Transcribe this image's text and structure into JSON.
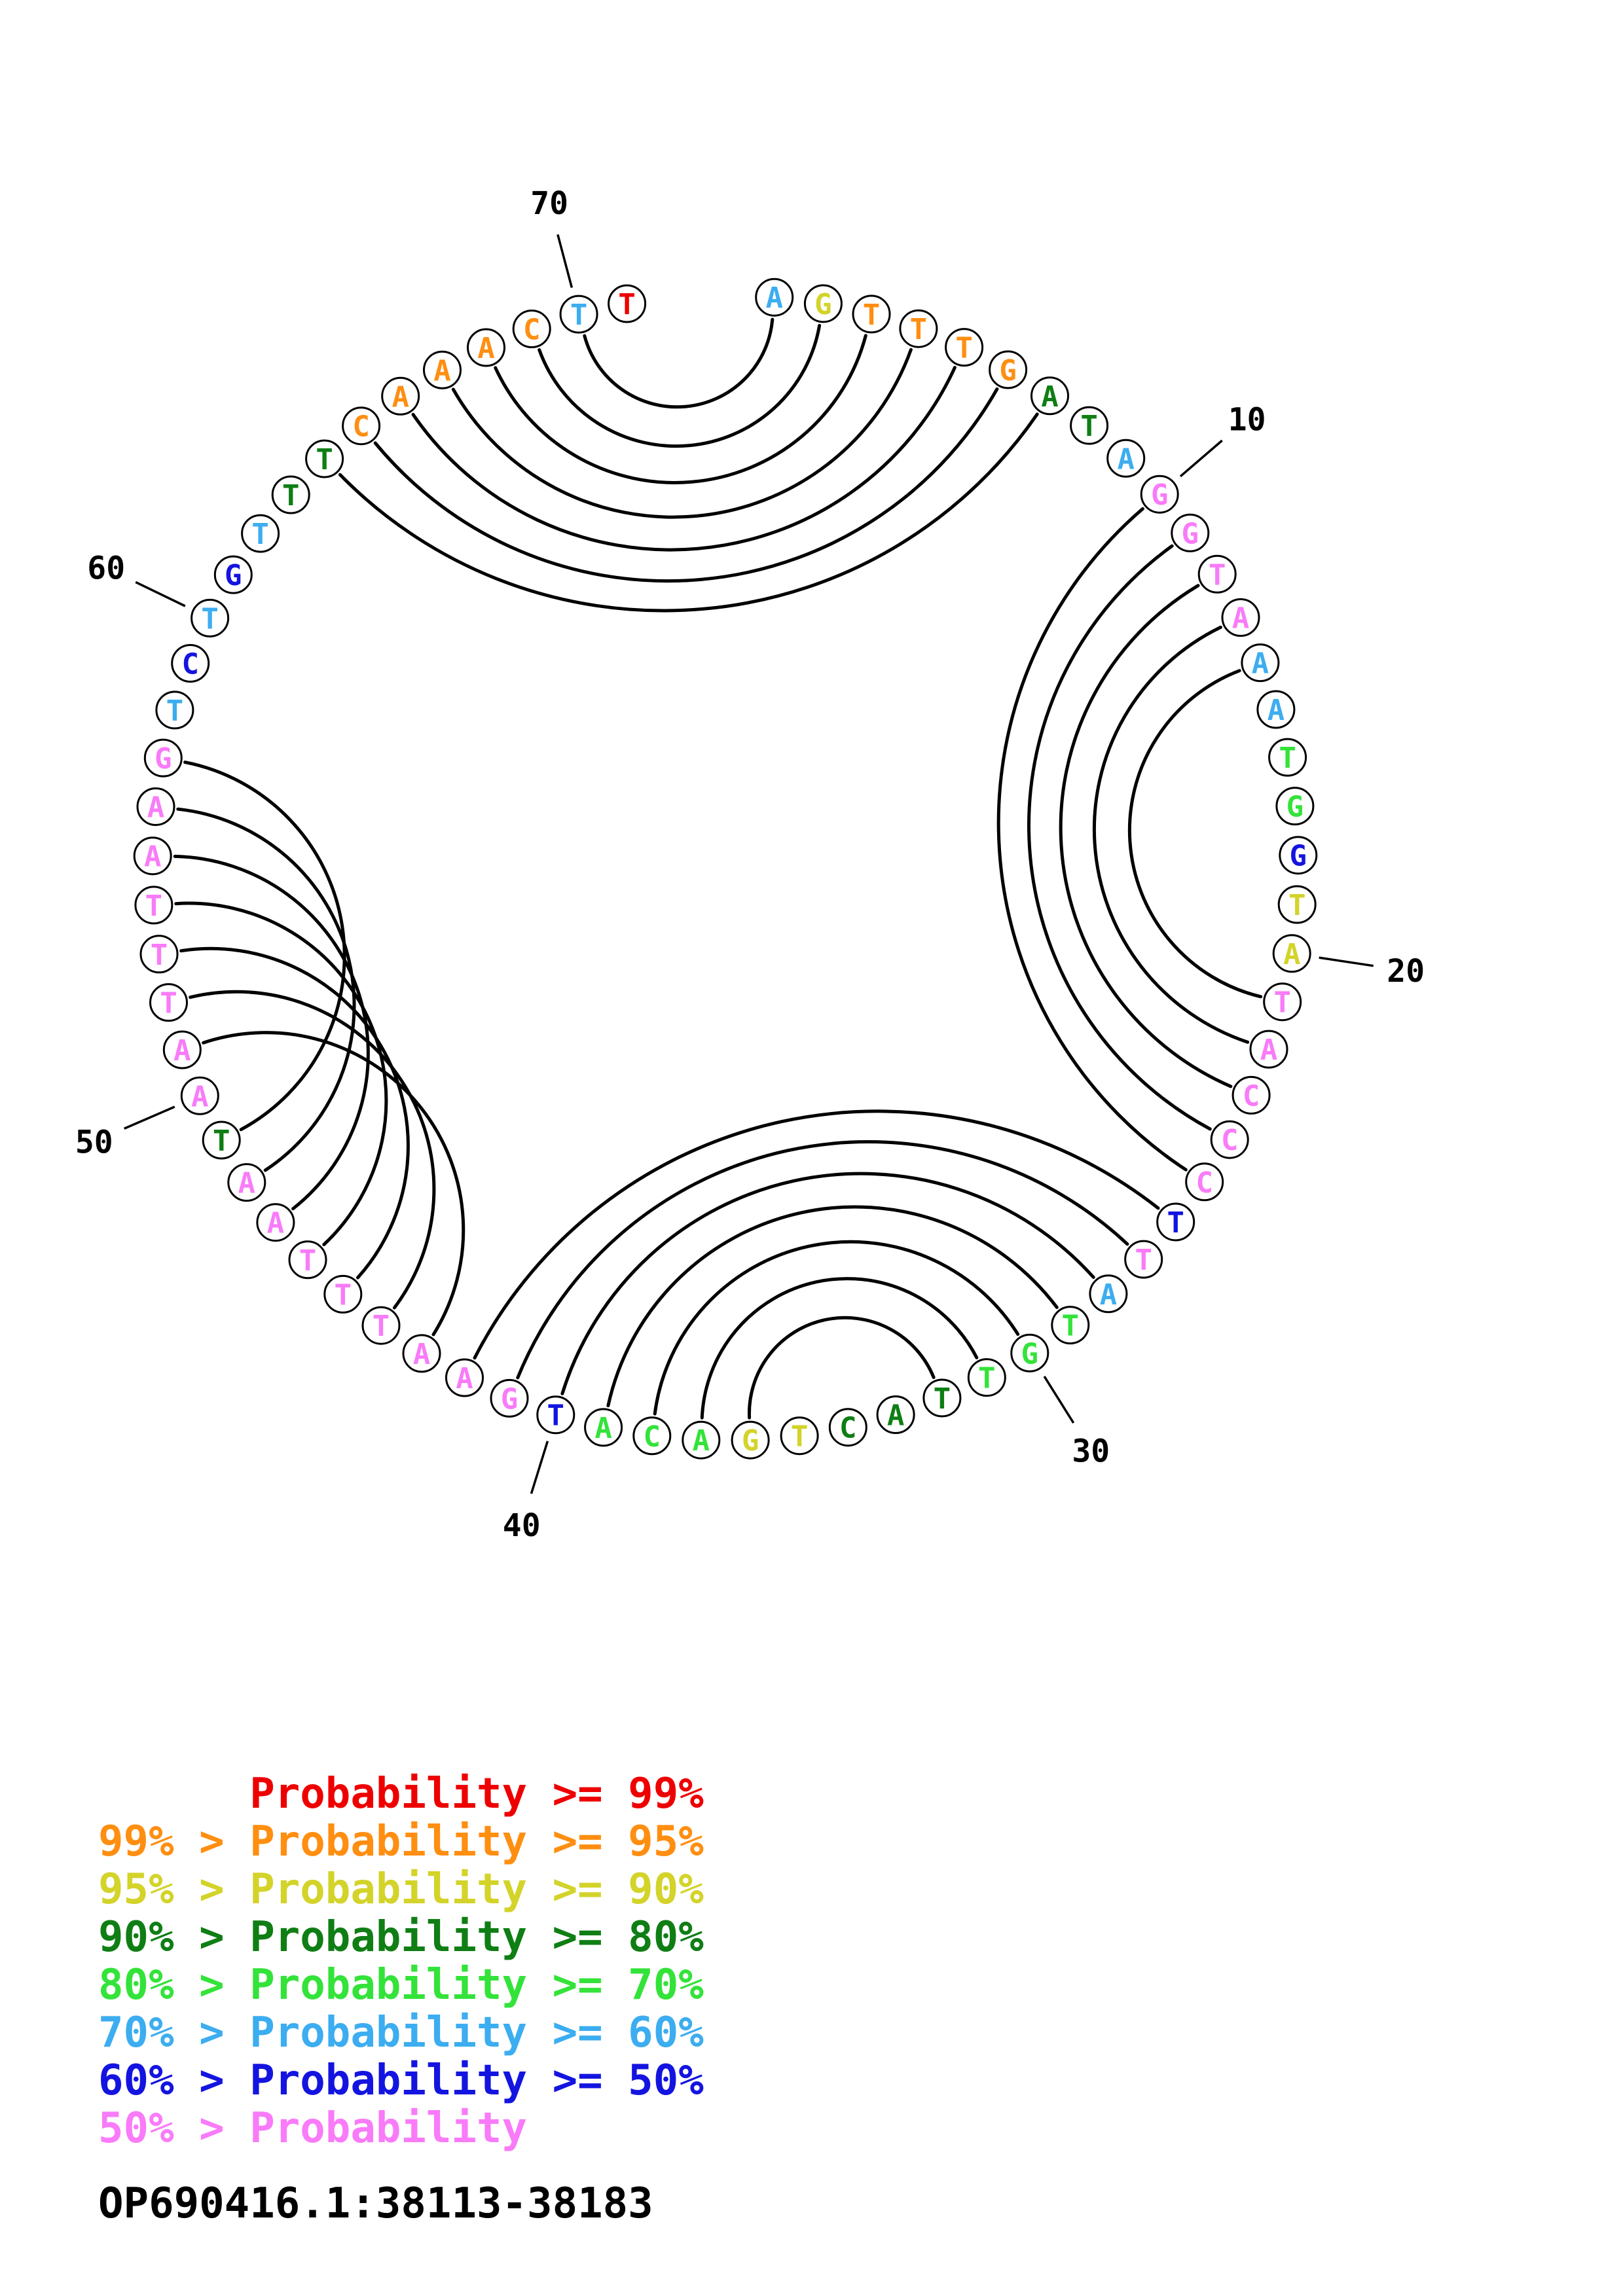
{
  "accession": "OP690416.1:38113-38183",
  "colors": {
    "p99": "#ee0000",
    "p95": "#ff8e11",
    "p90": "#d3d32a",
    "p80": "#0f7e14",
    "p70": "#33e339",
    "p60": "#3cadf0",
    "p50": "#1414e0",
    "plow": "#f97bf9"
  },
  "legend": {
    "rows": [
      {
        "text": "      Probability >= 99%",
        "class": "p99"
      },
      {
        "text": "99% > Probability >= 95%",
        "class": "p95"
      },
      {
        "text": "95% > Probability >= 90%",
        "class": "p90"
      },
      {
        "text": "90% > Probability >= 80%",
        "class": "p80"
      },
      {
        "text": "80% > Probability >= 70%",
        "class": "p70"
      },
      {
        "text": "70% > Probability >= 60%",
        "class": "p60"
      },
      {
        "text": "60% > Probability >= 50%",
        "class": "p50"
      },
      {
        "text": "50% > Probability",
        "class": "plow"
      }
    ]
  },
  "chart_data": {
    "type": "circular-rna-arc-plot",
    "title": "OP690416.1:38113-38183",
    "sequence": "AGTTTGATAGGTAAATGGTATACCCTTATGTTACTGACATGAATTTAATAATTTAAGTCTGTTTCAAACTT",
    "length": 71,
    "position_ticks": [
      10,
      20,
      30,
      40,
      50,
      60,
      70
    ],
    "base_pairs": [
      [
        1,
        70
      ],
      [
        2,
        69
      ],
      [
        3,
        68
      ],
      [
        4,
        67
      ],
      [
        5,
        66
      ],
      [
        6,
        65
      ],
      [
        7,
        64
      ],
      [
        10,
        25
      ],
      [
        11,
        24
      ],
      [
        12,
        23
      ],
      [
        13,
        22
      ],
      [
        14,
        21
      ],
      [
        26,
        42
      ],
      [
        27,
        41
      ],
      [
        28,
        40
      ],
      [
        29,
        39
      ],
      [
        30,
        38
      ],
      [
        31,
        37
      ],
      [
        32,
        36
      ],
      [
        43,
        51
      ],
      [
        44,
        52
      ],
      [
        45,
        53
      ],
      [
        46,
        54
      ],
      [
        47,
        55
      ],
      [
        48,
        56
      ],
      [
        49,
        57
      ]
    ],
    "base_probability_class": [
      "p60",
      "p90",
      "p95",
      "p95",
      "p95",
      "p95",
      "p80",
      "p80",
      "p60",
      "plow",
      "plow",
      "plow",
      "plow",
      "p60",
      "p60",
      "p70",
      "p70",
      "p50",
      "p90",
      "p90",
      "plow",
      "plow",
      "plow",
      "plow",
      "plow",
      "p50",
      "plow",
      "p60",
      "p70",
      "p70",
      "p70",
      "p80",
      "p80",
      "p80",
      "p90",
      "p90",
      "p70",
      "p70",
      "p70",
      "p50",
      "plow",
      "plow",
      "plow",
      "plow",
      "plow",
      "plow",
      "plow",
      "plow",
      "p80",
      "plow",
      "plow",
      "plow",
      "plow",
      "plow",
      "plow",
      "plow",
      "plow",
      "p60",
      "p50",
      "p60",
      "p50",
      "p60",
      "p80",
      "p80",
      "p95",
      "p95",
      "p95",
      "p95",
      "p95",
      "p60",
      "p99"
    ],
    "legend_position": "bottom-left",
    "grid": false
  }
}
